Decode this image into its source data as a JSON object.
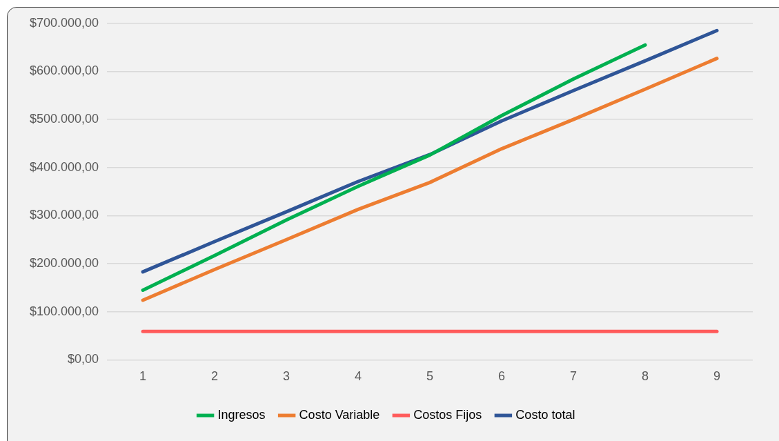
{
  "chart_data": {
    "type": "line",
    "categories": [
      "1",
      "2",
      "3",
      "4",
      "5",
      "6",
      "7",
      "8",
      "9"
    ],
    "series": [
      {
        "name": "Ingresos",
        "color": "#00b050",
        "values": [
          145000,
          217000,
          291000,
          361000,
          426000,
          508000,
          584000,
          655000,
          null
        ]
      },
      {
        "name": "Costo Variable",
        "color": "#ed7d31",
        "values": [
          124000,
          188000,
          250000,
          313000,
          369000,
          439000,
          500000,
          563000,
          627000
        ]
      },
      {
        "name": "Costos Fijos",
        "color": "#ff5b5b",
        "values": [
          59000,
          59000,
          59000,
          59000,
          59000,
          59000,
          59000,
          59000,
          59000
        ]
      },
      {
        "name": "Costo total",
        "color": "#2f5597",
        "values": [
          183000,
          246000,
          308000,
          371000,
          427000,
          497000,
          560000,
          622000,
          685000
        ]
      }
    ],
    "ylim": [
      0,
      700000
    ],
    "yticks": [
      {
        "value": 0,
        "label": "$0,00"
      },
      {
        "value": 100000,
        "label": "$100.000,00"
      },
      {
        "value": 200000,
        "label": "$200.000,00"
      },
      {
        "value": 300000,
        "label": "$300.000,00"
      },
      {
        "value": 400000,
        "label": "$400.000,00"
      },
      {
        "value": 500000,
        "label": "$500.000,00"
      },
      {
        "value": 600000,
        "label": "$600.000,00"
      },
      {
        "value": 700000,
        "label": "$700.000,00"
      }
    ],
    "grid": "y",
    "legend": "bottom",
    "marker": "none",
    "line_style": "solid"
  }
}
